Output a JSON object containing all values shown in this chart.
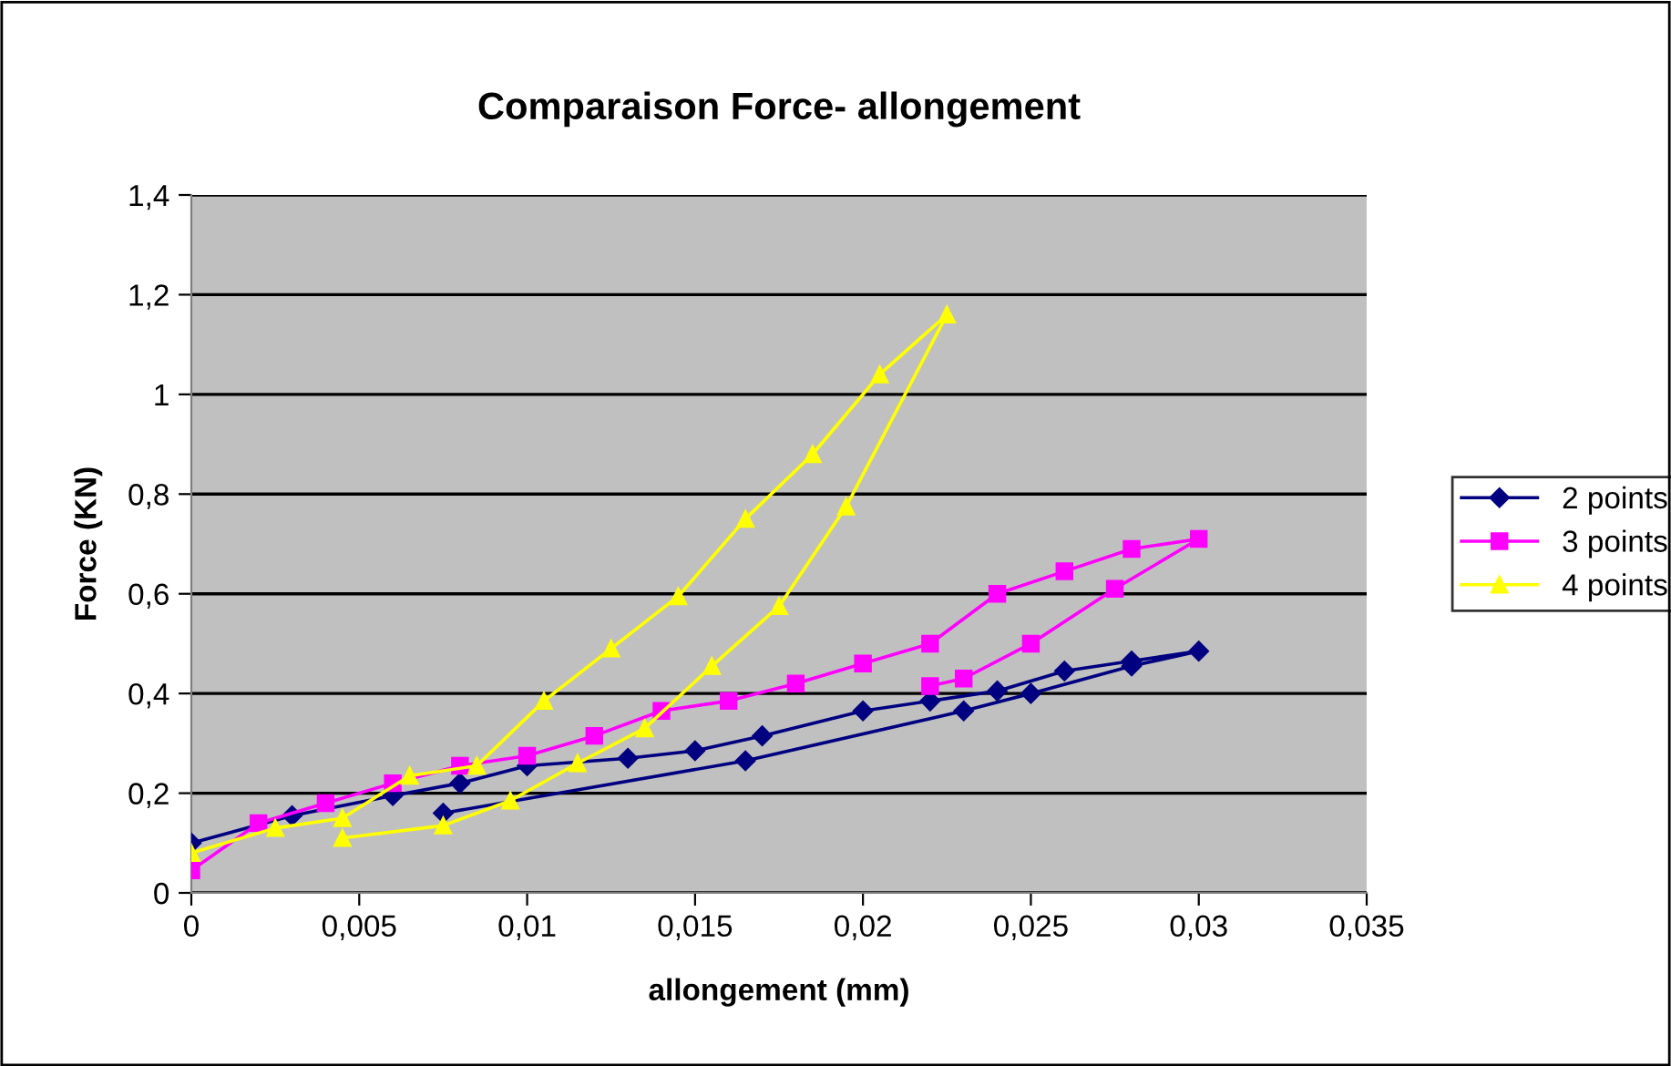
{
  "chart_data": {
    "type": "line",
    "title": "Comparaison Force- allongement",
    "xlabel": "allongement (mm)",
    "ylabel": "Force (KN)",
    "xlim": [
      0,
      0.035
    ],
    "xticks": [
      0,
      {
        "value": 0.005,
        "label": "0,005"
      },
      {
        "value": 0.01,
        "label": "0,01"
      },
      {
        "value": 0.015,
        "label": "0,015"
      },
      {
        "value": 0.02,
        "label": "0,02"
      },
      {
        "value": 0.025,
        "label": "0,025"
      },
      {
        "value": 0.03,
        "label": "0,03"
      },
      {
        "value": 0.035,
        "label": "0,035"
      }
    ],
    "ylim": [
      0,
      1.4
    ],
    "yticks": [
      0,
      {
        "value": 0.2,
        "label": "0,2"
      },
      {
        "value": 0.4,
        "label": "0,4"
      },
      {
        "value": 0.6,
        "label": "0,6"
      },
      {
        "value": 0.8,
        "label": "0,8"
      },
      1,
      {
        "value": 1.2,
        "label": "1,2"
      },
      {
        "value": 1.4,
        "label": "1,4"
      }
    ],
    "grid": "y",
    "legend": "right",
    "series": [
      {
        "name": "2 points",
        "color": "#000080",
        "marker": "diamond",
        "x": [
          0,
          0.003,
          0.006,
          0.008,
          0.01,
          0.013,
          0.015,
          0.017,
          0.02,
          0.022,
          0.024,
          0.026,
          0.028,
          0.03,
          0.028,
          0.025,
          0.023,
          0.0165,
          0.0075
        ],
        "values": [
          0.1,
          0.155,
          0.195,
          0.22,
          0.255,
          0.27,
          0.285,
          0.315,
          0.365,
          0.385,
          0.405,
          0.445,
          0.465,
          0.485,
          0.455,
          0.4,
          0.365,
          0.265,
          0.16
        ]
      },
      {
        "name": "3 points",
        "color": "#ff00ff",
        "marker": "square",
        "x": [
          0,
          0.002,
          0.004,
          0.006,
          0.008,
          0.01,
          0.012,
          0.014,
          0.016,
          0.018,
          0.02,
          0.022,
          0.024,
          0.026,
          0.028,
          0.03,
          0.0275,
          0.025,
          0.023,
          0.022
        ],
        "values": [
          0.045,
          0.14,
          0.18,
          0.22,
          0.255,
          0.275,
          0.315,
          0.365,
          0.385,
          0.42,
          0.46,
          0.5,
          0.6,
          0.645,
          0.69,
          0.71,
          0.61,
          0.5,
          0.43,
          0.415
        ]
      },
      {
        "name": "4 points",
        "color": "#ffff00",
        "marker": "triangle",
        "x": [
          0,
          0.0025,
          0.0045,
          0.0065,
          0.0085,
          0.0105,
          0.0125,
          0.0145,
          0.0165,
          0.0185,
          0.0205,
          0.0225,
          0.0195,
          0.0175,
          0.0155,
          0.0135,
          0.0115,
          0.0095,
          0.0075,
          0.0045
        ],
        "values": [
          0.08,
          0.13,
          0.15,
          0.235,
          0.255,
          0.385,
          0.49,
          0.595,
          0.75,
          0.88,
          1.04,
          1.16,
          0.775,
          0.575,
          0.455,
          0.33,
          0.26,
          0.185,
          0.135,
          0.11
        ]
      }
    ]
  }
}
